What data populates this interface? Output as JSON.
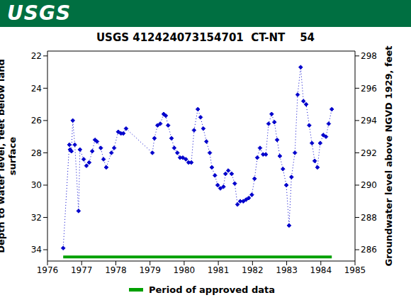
{
  "banner": "USGS",
  "chart_data": {
    "type": "line",
    "title": "USGS 412424073154701  CT-NT    54",
    "y_label": "Depth to water level, feet below land surface",
    "y2_label": "Groundwater level above NGVD 1929, feet",
    "xlim": [
      1976,
      1985
    ],
    "xticks": [
      1976,
      1977,
      1978,
      1979,
      1980,
      1981,
      1982,
      1983,
      1984,
      1985
    ],
    "ylim": [
      21.7,
      34.7
    ],
    "yticks": [
      22,
      24,
      26,
      28,
      30,
      32,
      34
    ],
    "y2lim": [
      285.3,
      298.3
    ],
    "y2ticks": [
      286,
      288,
      290,
      292,
      294,
      296,
      298
    ],
    "grid": false,
    "legend": "bottom",
    "series": [
      {
        "color": "#0000cc",
        "marker": "diamond",
        "line_style": "dotted",
        "x": [
          1976.46,
          1976.64,
          1976.66,
          1976.7,
          1976.74,
          1976.8,
          1976.91,
          1976.95,
          1977.06,
          1977.14,
          1977.22,
          1977.31,
          1977.39,
          1977.45,
          1977.56,
          1977.64,
          1977.72,
          1977.87,
          1977.95,
          1978.07,
          1978.15,
          1978.22,
          1978.3,
          1979.07,
          1979.13,
          1979.22,
          1979.3,
          1979.4,
          1979.46,
          1979.53,
          1979.63,
          1979.71,
          1979.8,
          1979.88,
          1979.96,
          1980.05,
          1980.13,
          1980.21,
          1980.29,
          1980.4,
          1980.48,
          1980.56,
          1980.65,
          1980.75,
          1980.81,
          1980.9,
          1980.98,
          1981.06,
          1981.15,
          1981.21,
          1981.29,
          1981.39,
          1981.48,
          1981.56,
          1981.64,
          1981.73,
          1981.81,
          1981.89,
          1981.98,
          1982.06,
          1982.14,
          1982.22,
          1982.31,
          1982.39,
          1982.47,
          1982.56,
          1982.64,
          1982.72,
          1982.8,
          1982.89,
          1982.99,
          1983.07,
          1983.14,
          1983.24,
          1983.32,
          1983.41,
          1983.49,
          1983.57,
          1983.66,
          1983.74,
          1983.82,
          1983.9,
          1983.98,
          1984.07,
          1984.15,
          1984.23,
          1984.32
        ],
        "values": [
          33.9,
          27.5,
          27.8,
          27.9,
          26.0,
          27.5,
          31.6,
          27.8,
          28.4,
          28.8,
          28.6,
          27.9,
          27.2,
          27.3,
          27.7,
          28.4,
          28.9,
          28.0,
          27.7,
          26.7,
          26.8,
          26.8,
          26.5,
          28.0,
          27.1,
          26.3,
          26.2,
          25.6,
          25.7,
          26.3,
          27.1,
          27.7,
          28.0,
          28.3,
          28.3,
          28.4,
          28.6,
          28.6,
          26.6,
          25.3,
          25.8,
          26.5,
          27.3,
          28.0,
          28.9,
          29.4,
          30.0,
          30.2,
          30.1,
          29.3,
          29.1,
          29.3,
          29.9,
          31.2,
          31.0,
          31.0,
          30.9,
          30.8,
          30.6,
          29.6,
          28.3,
          27.7,
          28.1,
          28.1,
          26.2,
          25.6,
          26.1,
          27.2,
          28.2,
          29.0,
          30.0,
          32.5,
          29.5,
          28.0,
          24.4,
          22.7,
          24.8,
          25.0,
          26.3,
          27.4,
          28.5,
          28.9,
          27.4,
          26.9,
          27.0,
          26.2,
          25.3
        ]
      },
      {
        "name": "Period of approved data",
        "color": "#00a000",
        "line_style": "solid",
        "x": [
          1976.46,
          1984.32
        ],
        "values": [
          34.45,
          34.45
        ]
      }
    ]
  }
}
